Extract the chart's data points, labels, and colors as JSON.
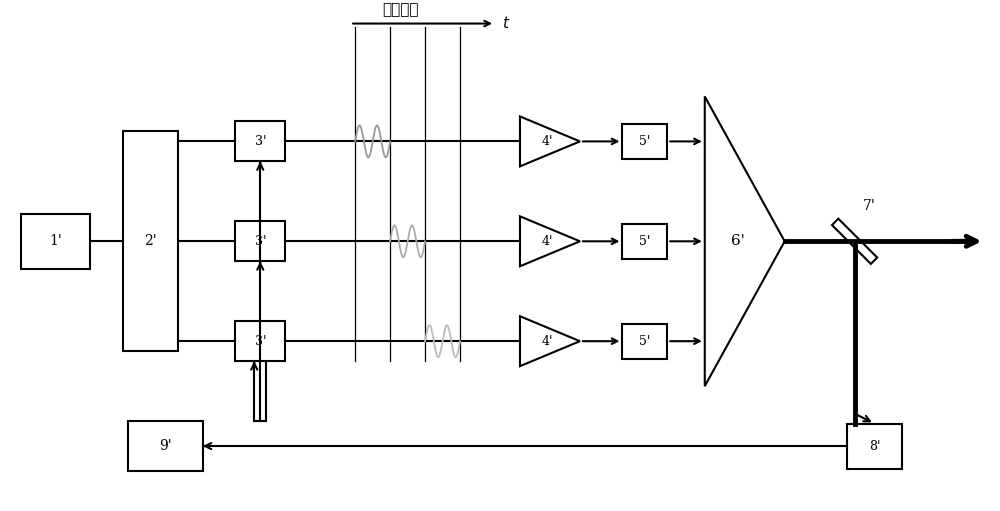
{
  "bg_color": "#ffffff",
  "fig_width": 10.0,
  "fig_height": 5.11,
  "modulation_label": "调制信号",
  "modulation_t_label": "t",
  "sine_color_top": "#999999",
  "sine_color_mid": "#aaaaaa",
  "sine_color_bot": "#bbbbbb",
  "lw": 1.5,
  "lw_bold": 3.5,
  "lw_thin": 0.9,
  "labels": {
    "b1": "1'",
    "b2": "2'",
    "b3t": "3'",
    "b3m": "3'",
    "b3b": "3'",
    "a1": "4'",
    "a2": "4'",
    "a3": "4'",
    "s1": "5'",
    "s2": "5'",
    "s3": "5'",
    "lens": "6'",
    "mirror": "7'",
    "det": "8'",
    "fb": "9'"
  }
}
